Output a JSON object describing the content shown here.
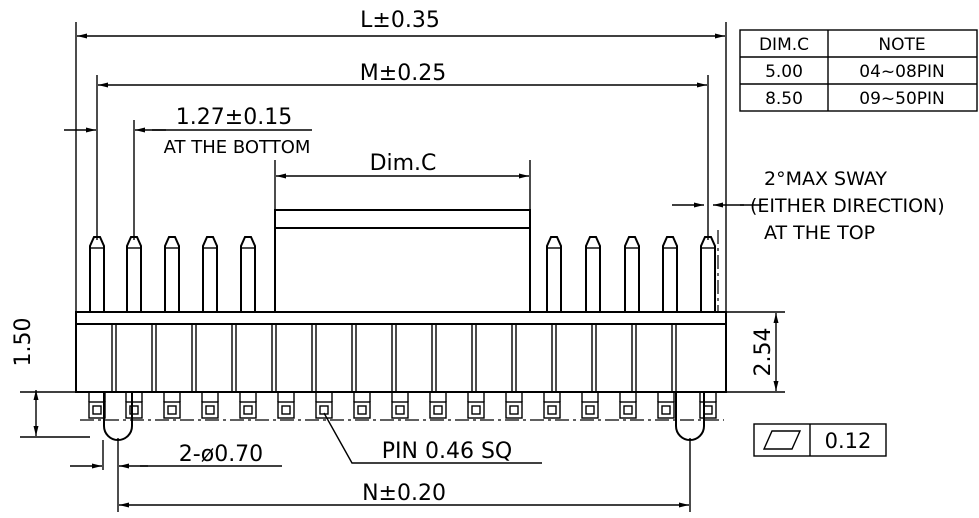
{
  "dimensions": {
    "overall_length": "L±0.35",
    "pin_row_span": "M±0.25",
    "pitch": "1.27±0.15",
    "pitch_note": "AT THE BOTTOM",
    "body_dim": "Dim.C",
    "mount_span": "N±0.20",
    "body_height": "2.54",
    "standoff": "1.50",
    "peg_diameter": "2-ø0.70",
    "pin_size": "PIN 0.46 SQ"
  },
  "sway_note": {
    "line1": "2°MAX SWAY",
    "line2": "(EITHER DIRECTION)",
    "line3": "AT THE TOP"
  },
  "dim_table": {
    "headers": [
      "DIM.C",
      "NOTE"
    ],
    "rows": [
      [
        "5.00",
        "04~08PIN"
      ],
      [
        "8.50",
        "09~50PIN"
      ]
    ]
  },
  "flatness": {
    "value": "0.12",
    "symbol": "flatness-icon"
  }
}
